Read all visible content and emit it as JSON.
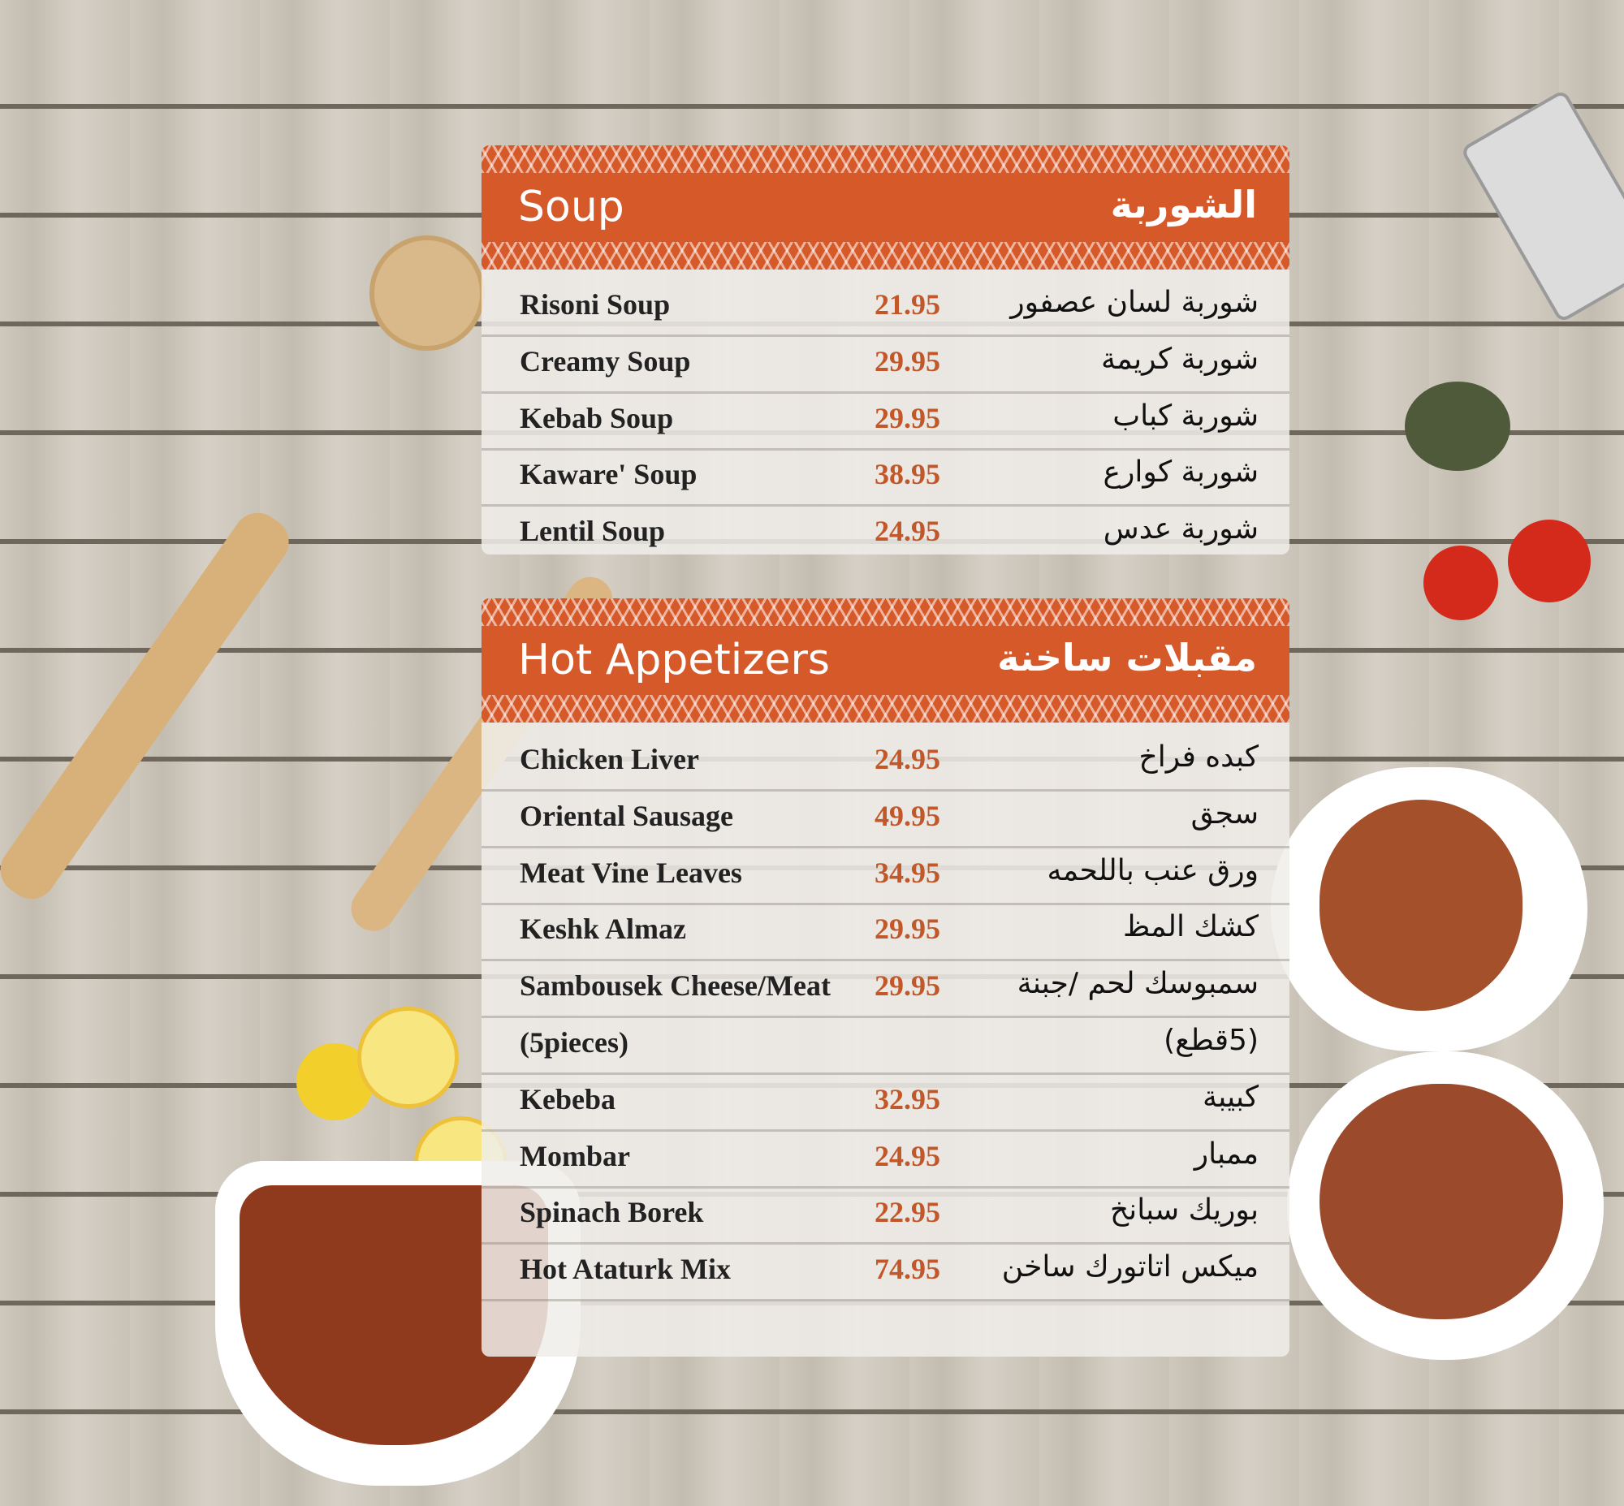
{
  "sections": [
    {
      "title_en": "Soup",
      "title_ar": "الشوربة",
      "items": [
        {
          "en": "Risoni Soup",
          "price": "21.95",
          "ar": "شوربة لسان عصفور"
        },
        {
          "en": "Creamy Soup",
          "price": "29.95",
          "ar": "شوربة كريمة"
        },
        {
          "en": "Kebab Soup",
          "price": "29.95",
          "ar": "شوربة كباب"
        },
        {
          "en": "Kaware' Soup",
          "price": "38.95",
          "ar": "شوربة كوارع"
        },
        {
          "en": "Lentil Soup",
          "price": "24.95",
          "ar": "شوربة عدس"
        }
      ]
    },
    {
      "title_en": "Hot Appetizers",
      "title_ar": "مقبلات ساخنة",
      "items": [
        {
          "en": "Chicken Liver",
          "price": "24.95",
          "ar": "كبده فراخ"
        },
        {
          "en": "Oriental Sausage",
          "price": "49.95",
          "ar": "سجق"
        },
        {
          "en": "Meat Vine Leaves",
          "price": "34.95",
          "ar": "ورق عنب باللحمه"
        },
        {
          "en": "Keshk Almaz",
          "price": "29.95",
          "ar": "كشك المظ"
        },
        {
          "en": "Sambousek Cheese/Meat",
          "price": "29.95",
          "ar": "سمبوسك لحم /جبنة"
        },
        {
          "en": "(5pieces)",
          "price": "",
          "ar": "(5قطع)"
        },
        {
          "en": "Kebeba",
          "price": "32.95",
          "ar": "كبيبة"
        },
        {
          "en": "Mombar",
          "price": "24.95",
          "ar": "ممبار"
        },
        {
          "en": "Spinach Borek",
          "price": "22.95",
          "ar": "بوريك سبانخ"
        },
        {
          "en": "Hot Ataturk Mix",
          "price": "74.95",
          "ar": "ميكس اتاتورك ساخن"
        }
      ]
    }
  ],
  "colors": {
    "accent": "#d6592a",
    "price": "#c2582a",
    "wood": "#c8c1b6"
  }
}
